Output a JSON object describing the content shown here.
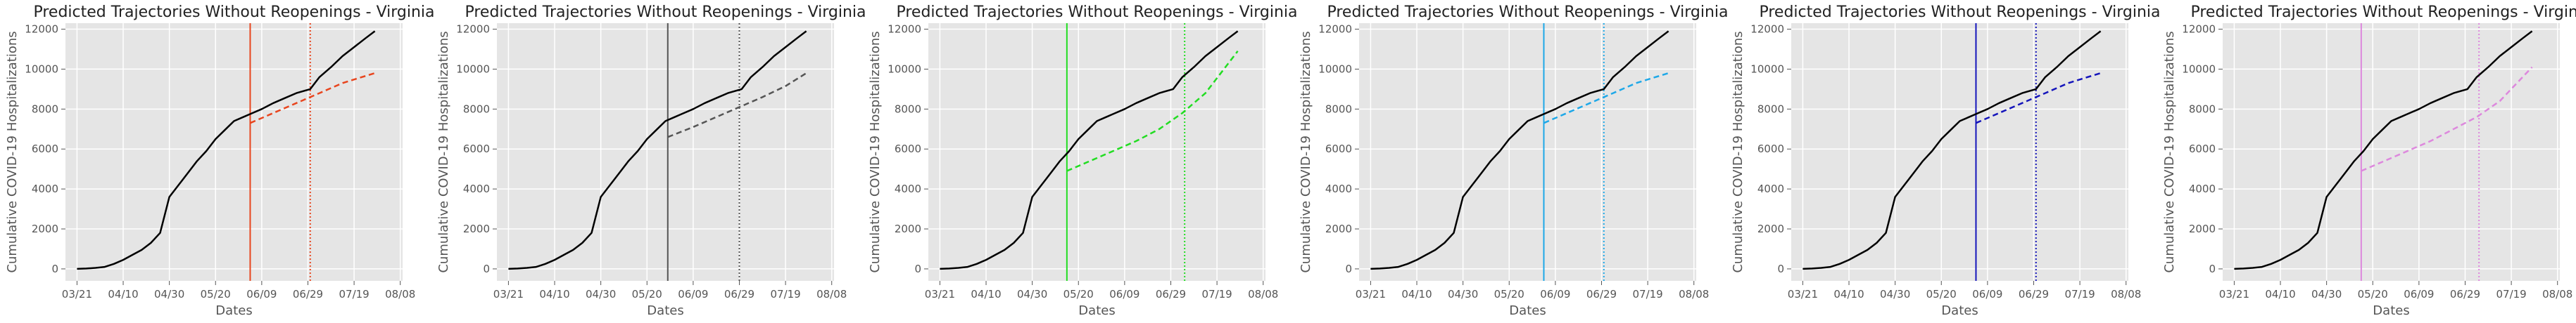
{
  "chart_data": [
    {
      "type": "line",
      "title": "Predicted Trajectories Without Reopenings - Virginia",
      "xlabel": "Dates",
      "ylabel": "Cumulative COVID-19 Hospitalizations",
      "x_ticks": [
        "03/21",
        "04/10",
        "04/30",
        "05/20",
        "06/09",
        "06/29",
        "07/19",
        "08/08"
      ],
      "y_ticks": [
        0,
        2000,
        4000,
        6000,
        8000,
        10000,
        12000
      ],
      "ylim": [
        -600,
        12300
      ],
      "grid": true,
      "accent": "#e8451e",
      "solid_vline": "06/04",
      "dotted_vline": "06/30",
      "observed": {
        "x": [
          "03/21",
          "03/25",
          "03/29",
          "04/02",
          "04/06",
          "04/10",
          "04/14",
          "04/18",
          "04/22",
          "04/26",
          "04/30",
          "05/04",
          "05/08",
          "05/12",
          "05/16",
          "05/20",
          "05/24",
          "05/28",
          "06/01",
          "06/04",
          "06/09",
          "06/14",
          "06/19",
          "06/24",
          "06/30",
          "07/04",
          "07/09",
          "07/14",
          "07/19",
          "07/24",
          "07/28"
        ],
        "y": [
          0,
          20,
          50,
          100,
          250,
          450,
          700,
          950,
          1300,
          1800,
          3600,
          4200,
          4800,
          5400,
          5900,
          6500,
          6950,
          7400,
          7600,
          7750,
          8000,
          8300,
          8550,
          8800,
          9000,
          9600,
          10100,
          10650,
          11100,
          11550,
          11900
        ]
      },
      "predicted": {
        "x": [
          "06/04",
          "06/14",
          "06/24",
          "07/04",
          "07/14",
          "07/28"
        ],
        "y": [
          7300,
          7800,
          8300,
          8800,
          9300,
          9800
        ]
      }
    },
    {
      "type": "line",
      "title": "Predicted Trajectories Without Reopenings - Virginia",
      "xlabel": "Dates",
      "ylabel": "Cumulative COVID-19 Hospitalizations",
      "x_ticks": [
        "03/21",
        "04/10",
        "04/30",
        "05/20",
        "06/09",
        "06/29",
        "07/19",
        "08/08"
      ],
      "y_ticks": [
        0,
        2000,
        4000,
        6000,
        8000,
        10000,
        12000
      ],
      "ylim": [
        -600,
        12300
      ],
      "grid": true,
      "accent": "#555555",
      "solid_vline": "05/29",
      "dotted_vline": "06/29",
      "observed": {
        "x": [
          "03/21",
          "03/25",
          "03/29",
          "04/02",
          "04/06",
          "04/10",
          "04/14",
          "04/18",
          "04/22",
          "04/26",
          "04/30",
          "05/04",
          "05/08",
          "05/12",
          "05/16",
          "05/20",
          "05/24",
          "05/28",
          "06/01",
          "06/04",
          "06/09",
          "06/14",
          "06/19",
          "06/24",
          "06/30",
          "07/04",
          "07/09",
          "07/14",
          "07/19",
          "07/24",
          "07/28"
        ],
        "y": [
          0,
          20,
          50,
          100,
          250,
          450,
          700,
          950,
          1300,
          1800,
          3600,
          4200,
          4800,
          5400,
          5900,
          6500,
          6950,
          7400,
          7600,
          7750,
          8000,
          8300,
          8550,
          8800,
          9000,
          9600,
          10100,
          10650,
          11100,
          11550,
          11900
        ]
      },
      "predicted": {
        "x": [
          "05/29",
          "06/09",
          "06/19",
          "06/29",
          "07/09",
          "07/19",
          "07/28"
        ],
        "y": [
          6600,
          7100,
          7600,
          8100,
          8600,
          9150,
          9800
        ]
      }
    },
    {
      "type": "line",
      "title": "Predicted Trajectories Without Reopenings - Virginia",
      "xlabel": "Dates",
      "ylabel": "Cumulative COVID-19 Hospitalizations",
      "x_ticks": [
        "03/21",
        "04/10",
        "04/30",
        "05/20",
        "06/09",
        "06/29",
        "07/19",
        "08/08"
      ],
      "y_ticks": [
        0,
        2000,
        4000,
        6000,
        8000,
        10000,
        12000
      ],
      "ylim": [
        -600,
        12300
      ],
      "grid": true,
      "accent": "#22dd22",
      "solid_vline": "05/15",
      "dotted_vline": "07/05",
      "observed": {
        "x": [
          "03/21",
          "03/25",
          "03/29",
          "04/02",
          "04/06",
          "04/10",
          "04/14",
          "04/18",
          "04/22",
          "04/26",
          "04/30",
          "05/04",
          "05/08",
          "05/12",
          "05/16",
          "05/20",
          "05/24",
          "05/28",
          "06/01",
          "06/04",
          "06/09",
          "06/14",
          "06/19",
          "06/24",
          "06/30",
          "07/04",
          "07/09",
          "07/14",
          "07/19",
          "07/24",
          "07/28"
        ],
        "y": [
          0,
          20,
          50,
          100,
          250,
          450,
          700,
          950,
          1300,
          1800,
          3600,
          4200,
          4800,
          5400,
          5900,
          6500,
          6950,
          7400,
          7600,
          7750,
          8000,
          8300,
          8550,
          8800,
          9000,
          9600,
          10100,
          10650,
          11100,
          11550,
          11900
        ]
      },
      "predicted": {
        "x": [
          "05/15",
          "05/25",
          "06/04",
          "06/14",
          "06/24",
          "07/04",
          "07/14",
          "07/28"
        ],
        "y": [
          4900,
          5400,
          5900,
          6400,
          7000,
          7800,
          8800,
          10900
        ]
      }
    },
    {
      "type": "line",
      "title": "Predicted Trajectories Without Reopenings - Virginia",
      "xlabel": "Dates",
      "ylabel": "Cumulative COVID-19 Hospitalizations",
      "x_ticks": [
        "03/21",
        "04/10",
        "04/30",
        "05/20",
        "06/09",
        "06/29",
        "07/19",
        "08/08"
      ],
      "y_ticks": [
        0,
        2000,
        4000,
        6000,
        8000,
        10000,
        12000
      ],
      "ylim": [
        -600,
        12300
      ],
      "grid": true,
      "accent": "#1ea8e8",
      "solid_vline": "06/04",
      "dotted_vline": "06/30",
      "observed": {
        "x": [
          "03/21",
          "03/25",
          "03/29",
          "04/02",
          "04/06",
          "04/10",
          "04/14",
          "04/18",
          "04/22",
          "04/26",
          "04/30",
          "05/04",
          "05/08",
          "05/12",
          "05/16",
          "05/20",
          "05/24",
          "05/28",
          "06/01",
          "06/04",
          "06/09",
          "06/14",
          "06/19",
          "06/24",
          "06/30",
          "07/04",
          "07/09",
          "07/14",
          "07/19",
          "07/24",
          "07/28"
        ],
        "y": [
          0,
          20,
          50,
          100,
          250,
          450,
          700,
          950,
          1300,
          1800,
          3600,
          4200,
          4800,
          5400,
          5900,
          6500,
          6950,
          7400,
          7600,
          7750,
          8000,
          8300,
          8550,
          8800,
          9000,
          9600,
          10100,
          10650,
          11100,
          11550,
          11900
        ]
      },
      "predicted": {
        "x": [
          "06/04",
          "06/14",
          "06/24",
          "07/04",
          "07/14",
          "07/28"
        ],
        "y": [
          7300,
          7800,
          8300,
          8800,
          9300,
          9800
        ]
      }
    },
    {
      "type": "line",
      "title": "Predicted Trajectories Without Reopenings - Virginia",
      "xlabel": "Dates",
      "ylabel": "Cumulative COVID-19 Hospitalizations",
      "x_ticks": [
        "03/21",
        "04/10",
        "04/30",
        "05/20",
        "06/09",
        "06/29",
        "07/19",
        "08/08"
      ],
      "y_ticks": [
        0,
        2000,
        4000,
        6000,
        8000,
        10000,
        12000
      ],
      "ylim": [
        -600,
        12300
      ],
      "grid": true,
      "accent": "#1515bb",
      "solid_vline": "06/04",
      "dotted_vline": "06/30",
      "observed": {
        "x": [
          "03/21",
          "03/25",
          "03/29",
          "04/02",
          "04/06",
          "04/10",
          "04/14",
          "04/18",
          "04/22",
          "04/26",
          "04/30",
          "05/04",
          "05/08",
          "05/12",
          "05/16",
          "05/20",
          "05/24",
          "05/28",
          "06/01",
          "06/04",
          "06/09",
          "06/14",
          "06/19",
          "06/24",
          "06/30",
          "07/04",
          "07/09",
          "07/14",
          "07/19",
          "07/24",
          "07/28"
        ],
        "y": [
          0,
          20,
          50,
          100,
          250,
          450,
          700,
          950,
          1300,
          1800,
          3600,
          4200,
          4800,
          5400,
          5900,
          6500,
          6950,
          7400,
          7600,
          7750,
          8000,
          8300,
          8550,
          8800,
          9000,
          9600,
          10100,
          10650,
          11100,
          11550,
          11900
        ]
      },
      "predicted": {
        "x": [
          "06/04",
          "06/14",
          "06/24",
          "07/04",
          "07/14",
          "07/28"
        ],
        "y": [
          7300,
          7800,
          8300,
          8800,
          9300,
          9800
        ]
      }
    },
    {
      "type": "line",
      "title": "Predicted Trajectories Without Reopenings - Virginia",
      "xlabel": "Dates",
      "ylabel": "Cumulative COVID-19 Hospitalizations",
      "x_ticks": [
        "03/21",
        "04/10",
        "04/30",
        "05/20",
        "06/09",
        "06/29",
        "07/19",
        "08/08"
      ],
      "y_ticks": [
        0,
        2000,
        4000,
        6000,
        8000,
        10000,
        12000
      ],
      "ylim": [
        -600,
        12300
      ],
      "grid": true,
      "accent": "#dd88dd",
      "solid_vline": "05/15",
      "dotted_vline": "07/05",
      "observed": {
        "x": [
          "03/21",
          "03/25",
          "03/29",
          "04/02",
          "04/06",
          "04/10",
          "04/14",
          "04/18",
          "04/22",
          "04/26",
          "04/30",
          "05/04",
          "05/08",
          "05/12",
          "05/16",
          "05/20",
          "05/24",
          "05/28",
          "06/01",
          "06/04",
          "06/09",
          "06/14",
          "06/19",
          "06/24",
          "06/30",
          "07/04",
          "07/09",
          "07/14",
          "07/19",
          "07/24",
          "07/28"
        ],
        "y": [
          0,
          20,
          50,
          100,
          250,
          450,
          700,
          950,
          1300,
          1800,
          3600,
          4200,
          4800,
          5400,
          5900,
          6500,
          6950,
          7400,
          7600,
          7750,
          8000,
          8300,
          8550,
          8800,
          9000,
          9600,
          10100,
          10650,
          11100,
          11550,
          11900
        ]
      },
      "predicted": {
        "x": [
          "05/15",
          "05/25",
          "06/04",
          "06/14",
          "06/24",
          "07/04",
          "07/14",
          "07/28"
        ],
        "y": [
          4900,
          5400,
          5900,
          6400,
          7000,
          7600,
          8400,
          10100
        ]
      }
    }
  ]
}
